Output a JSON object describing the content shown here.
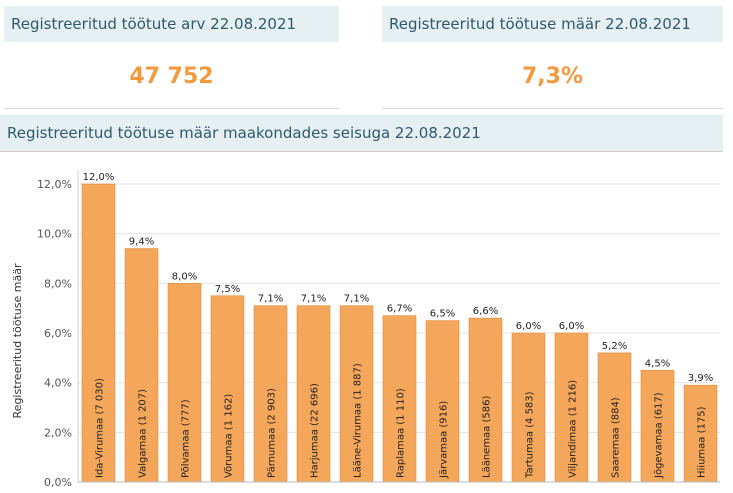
{
  "kpis": [
    {
      "title": "Registreeritud töötute arv 22.08.2021",
      "value": "47 752"
    },
    {
      "title": "Registreeritud töötuse määr 22.08.2021",
      "value": "7,3%"
    }
  ],
  "section_title": "Registreeritud töötuse määr maakondades seisuga 22.08.2021",
  "colors": {
    "bar": "#f4a65a",
    "bar_stroke": "#e08c3c",
    "kpi_value": "#f39a3e",
    "header_bg": "#e6eff2",
    "header_text": "#2e5a6e"
  },
  "chart_data": {
    "type": "bar",
    "ylabel": "Registreeritud töötuse määr",
    "ylim": [
      0,
      12
    ],
    "yticks": [
      "0,0%",
      "2,0%",
      "4,0%",
      "6,0%",
      "8,0%",
      "10,0%",
      "12,0%"
    ],
    "grid": true,
    "categories": [
      "Ida-Virumaa (7 030)",
      "Valgamaa (1 207)",
      "Põlvamaa (777)",
      "Võrumaa (1 162)",
      "Pärnumaa (2 903)",
      "Harjumaa (22 696)",
      "Lääne-Virumaa (1 887)",
      "Raplamaa (1 110)",
      "Järvamaa (916)",
      "Läänemaa (586)",
      "Tartumaa (4 583)",
      "Viljandimaa (1 216)",
      "Saaremaa (884)",
      "Jõgevamaa (617)",
      "Hiiumaa (175)"
    ],
    "values": [
      12.0,
      9.4,
      8.0,
      7.5,
      7.1,
      7.1,
      7.1,
      6.7,
      6.5,
      6.6,
      6.0,
      6.0,
      5.2,
      4.5,
      3.9
    ],
    "labels": [
      "12,0%",
      "9,4%",
      "8,0%",
      "7,5%",
      "7,1%",
      "7,1%",
      "7,1%",
      "6,7%",
      "6,5%",
      "6,6%",
      "6,0%",
      "6,0%",
      "5,2%",
      "4,5%",
      "3,9%"
    ]
  }
}
